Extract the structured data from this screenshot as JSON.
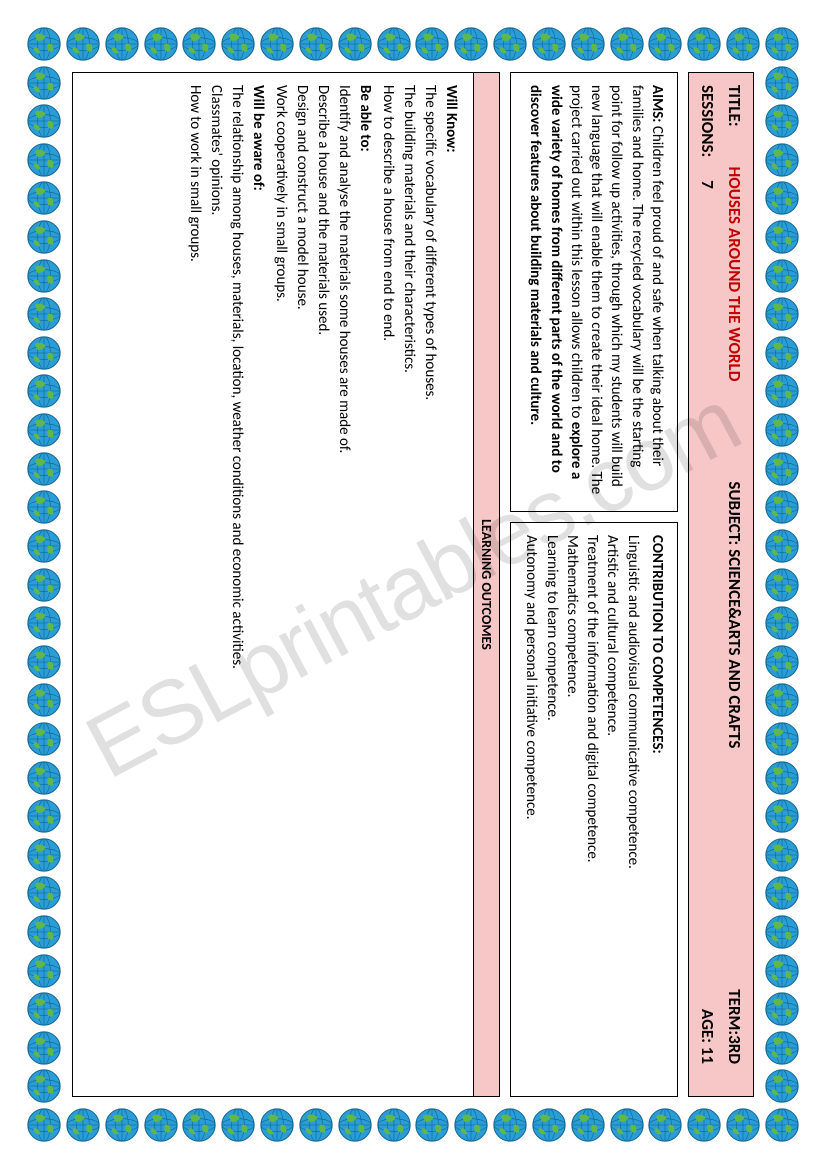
{
  "watermark": "ESLprintables.com",
  "globe": {
    "count_horizontal": 20,
    "count_vertical": 29,
    "size": 36,
    "colors": {
      "ocean": "#2a9dd6",
      "land": "#5fb848",
      "grid": "#0b5f8a"
    }
  },
  "header": {
    "title_label": "TITLE:",
    "title": "HOUSES AROUND THE WORLD",
    "subject_label": "SUBJECT:",
    "subject": "SCIENCE&ARTS AND CRAFTS",
    "term_label": "TERM:",
    "term": "3RD",
    "sessions_label": "SESSIONS:",
    "sessions": "7",
    "age_label": "AGE:",
    "age": "11"
  },
  "aims": {
    "label": "AIMS:",
    "text_before_bold": "Children feel proud of and safe when talking about their families and home. The recycled vocabulary will be the starting point for follow up activities, through which my students will build new language that will enable them to create their ideal home. The project carried out within this lesson allows children to ",
    "bold_text": "explore a wide variety of homes from different parts of the world and to discover features about building materials and culture."
  },
  "competences": {
    "label": "CONTRIBUTION TO COMPETENCES:",
    "items": [
      "Linguistic and audiovisual communicative competence.",
      "Artistic and cultural competence.",
      "Treatment of the information and digital competence.",
      "Mathematics competence.",
      "Learning to learn competence.",
      "Autonomy and personal initiative competence."
    ]
  },
  "outcomes": {
    "header": "LEARNING OUTCOMES",
    "know_label": "Will Know:",
    "know_items": [
      "The specific vocabulary of different types of houses.",
      "The building materials and their characteristics.",
      "How to describe a house from end to end."
    ],
    "able_label": "Be able to:",
    "able_items": [
      "Identify and analyse the materials some houses are made of.",
      "Describe a house and the materials used.",
      "Design and construct a model house.",
      "Work cooperatively in small groups."
    ],
    "aware_label": "Will be aware of:",
    "aware_items": [
      "The relationship among houses, materials, location, weather conditions and economic activities.",
      "Classmates' opinions.",
      "How to work in small groups."
    ]
  },
  "colors": {
    "header_bg": "#f7c7c7",
    "title_color": "#c00000",
    "border": "#000000"
  }
}
